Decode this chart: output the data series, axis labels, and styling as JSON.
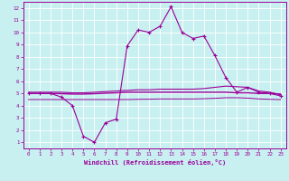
{
  "xlabel": "Windchill (Refroidissement éolien,°C)",
  "background_color": "#c8f0f0",
  "line_color": "#990099",
  "grid_color": "#ffffff",
  "xlim": [
    -0.5,
    23.5
  ],
  "ylim": [
    0.5,
    12.5
  ],
  "xticks": [
    0,
    1,
    2,
    3,
    4,
    5,
    6,
    7,
    8,
    9,
    10,
    11,
    12,
    13,
    14,
    15,
    16,
    17,
    18,
    19,
    20,
    21,
    22,
    23
  ],
  "yticks": [
    1,
    2,
    3,
    4,
    5,
    6,
    7,
    8,
    9,
    10,
    11,
    12
  ],
  "curve1_x": [
    0,
    1,
    2,
    3,
    4,
    5,
    6,
    7,
    8,
    9,
    10,
    11,
    12,
    13,
    14,
    15,
    16,
    17,
    18,
    19,
    20,
    21,
    22,
    23
  ],
  "curve1_y": [
    5.0,
    5.0,
    5.0,
    4.7,
    4.0,
    1.5,
    1.0,
    2.6,
    2.9,
    8.9,
    10.2,
    10.0,
    10.5,
    12.1,
    10.0,
    9.5,
    9.7,
    8.1,
    6.3,
    5.1,
    5.5,
    5.1,
    5.0,
    4.8
  ],
  "curve2_x": [
    0,
    1,
    2,
    3,
    4,
    5,
    6,
    7,
    8,
    9,
    10,
    11,
    12,
    13,
    14,
    15,
    16,
    17,
    18,
    19,
    20,
    21,
    22,
    23
  ],
  "curve2_y": [
    5.1,
    5.1,
    5.1,
    5.1,
    5.05,
    5.05,
    5.1,
    5.15,
    5.2,
    5.25,
    5.3,
    5.3,
    5.35,
    5.35,
    5.35,
    5.35,
    5.4,
    5.5,
    5.6,
    5.55,
    5.5,
    5.2,
    5.1,
    4.9
  ],
  "curve3_x": [
    0,
    1,
    2,
    3,
    4,
    5,
    6,
    7,
    8,
    9,
    10,
    11,
    12,
    13,
    14,
    15,
    16,
    17,
    18,
    19,
    20,
    21,
    22,
    23
  ],
  "curve3_y": [
    5.0,
    5.0,
    5.0,
    4.98,
    4.95,
    4.95,
    4.98,
    5.02,
    5.05,
    5.1,
    5.1,
    5.1,
    5.1,
    5.1,
    5.1,
    5.1,
    5.1,
    5.1,
    5.1,
    5.05,
    5.05,
    5.0,
    5.0,
    4.95
  ],
  "curve4_x": [
    0,
    1,
    2,
    3,
    4,
    5,
    6,
    7,
    8,
    9,
    10,
    11,
    12,
    13,
    14,
    15,
    16,
    17,
    18,
    19,
    20,
    21,
    22,
    23
  ],
  "curve4_y": [
    4.5,
    4.5,
    4.5,
    4.5,
    4.5,
    4.5,
    4.5,
    4.5,
    4.5,
    4.5,
    4.52,
    4.53,
    4.55,
    4.55,
    4.55,
    4.55,
    4.57,
    4.6,
    4.65,
    4.65,
    4.62,
    4.55,
    4.52,
    4.5
  ]
}
